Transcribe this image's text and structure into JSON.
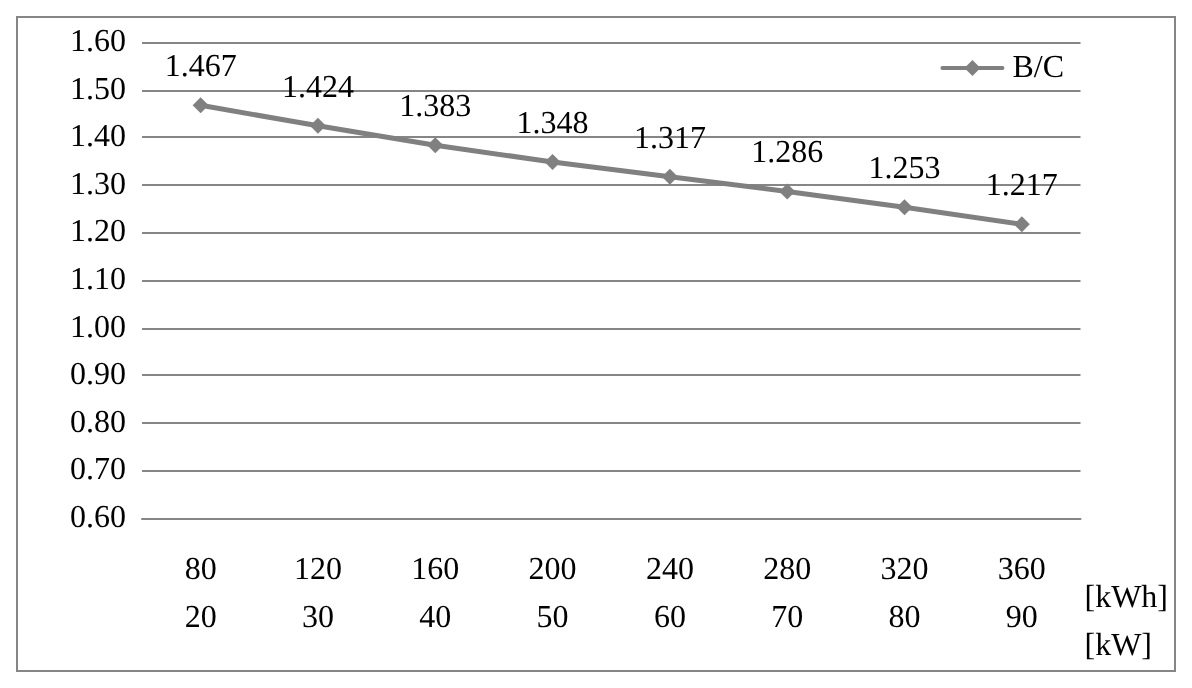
{
  "chart_data": {
    "type": "line",
    "xlabel": "[kWh]\n[kW]",
    "categories": [
      "80\n20",
      "120\n30",
      "160\n40",
      "200\n50",
      "240\n60",
      "280\n70",
      "320\n80",
      "360\n90"
    ],
    "series": [
      {
        "name": "B/C",
        "color": "#808080",
        "values": [
          1.467,
          1.424,
          1.383,
          1.348,
          1.317,
          1.286,
          1.253,
          1.217
        ]
      }
    ],
    "ylim": [
      0.6,
      1.6
    ],
    "yticks": [
      {
        "value": 0.6,
        "label": "0.60"
      },
      {
        "value": 0.7,
        "label": "0.70"
      },
      {
        "value": 0.8,
        "label": "0.80"
      },
      {
        "value": 0.9,
        "label": "0.90"
      },
      {
        "value": 1.0,
        "label": "1.00"
      },
      {
        "value": 1.1,
        "label": "1.10"
      },
      {
        "value": 1.2,
        "label": "1.20"
      },
      {
        "value": 1.3,
        "label": "1.30"
      },
      {
        "value": 1.4,
        "label": "1.40"
      },
      {
        "value": 1.5,
        "label": "1.50"
      },
      {
        "value": 1.6,
        "label": "1.60"
      }
    ],
    "grid": "y",
    "legend": "top right",
    "marker": "diamond",
    "line_style": "solid",
    "data_labels": true
  }
}
